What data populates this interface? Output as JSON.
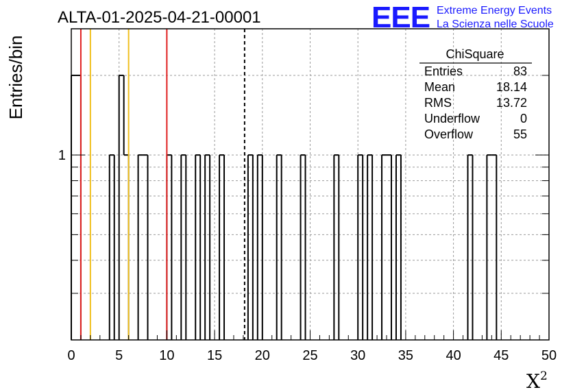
{
  "chart_data": {
    "type": "histogram",
    "title": "ALTA-01-2025-04-21-00001",
    "xlabel": "X",
    "xlabel_superscript": "2",
    "ylabel": "Entries/bin",
    "xlim": [
      0,
      50
    ],
    "ylim": [
      0.2,
      3
    ],
    "y_scale": "log",
    "bin_width": 0.5,
    "grid": true,
    "x_ticks": [
      0,
      5,
      10,
      15,
      20,
      25,
      30,
      35,
      40,
      45,
      50
    ],
    "y_tick_labels": [
      {
        "value": 1,
        "label": "1"
      }
    ],
    "bins": [
      {
        "x0": 0.0,
        "x1": 0.5,
        "count": 2
      },
      {
        "x0": 0.5,
        "x1": 1.0,
        "count": 2
      },
      {
        "x0": 4.0,
        "x1": 4.5,
        "count": 1
      },
      {
        "x0": 5.0,
        "x1": 5.5,
        "count": 2
      },
      {
        "x0": 5.5,
        "x1": 6.0,
        "count": 1
      },
      {
        "x0": 7.0,
        "x1": 7.5,
        "count": 1
      },
      {
        "x0": 7.5,
        "x1": 8.0,
        "count": 1
      },
      {
        "x0": 10.0,
        "x1": 10.5,
        "count": 1
      },
      {
        "x0": 11.5,
        "x1": 12.0,
        "count": 1
      },
      {
        "x0": 13.0,
        "x1": 13.5,
        "count": 1
      },
      {
        "x0": 14.0,
        "x1": 14.5,
        "count": 1
      },
      {
        "x0": 15.5,
        "x1": 16.0,
        "count": 1
      },
      {
        "x0": 18.5,
        "x1": 19.0,
        "count": 1
      },
      {
        "x0": 19.5,
        "x1": 20.0,
        "count": 1
      },
      {
        "x0": 21.5,
        "x1": 22.0,
        "count": 1
      },
      {
        "x0": 24.0,
        "x1": 24.5,
        "count": 1
      },
      {
        "x0": 27.5,
        "x1": 28.0,
        "count": 1
      },
      {
        "x0": 30.0,
        "x1": 30.5,
        "count": 1
      },
      {
        "x0": 31.0,
        "x1": 31.5,
        "count": 1
      },
      {
        "x0": 32.5,
        "x1": 33.0,
        "count": 1
      },
      {
        "x0": 33.0,
        "x1": 33.5,
        "count": 1
      },
      {
        "x0": 34.0,
        "x1": 34.5,
        "count": 1
      },
      {
        "x0": 41.5,
        "x1": 42.0,
        "count": 1
      },
      {
        "x0": 43.5,
        "x1": 44.0,
        "count": 1
      },
      {
        "x0": 44.0,
        "x1": 44.5,
        "count": 1
      }
    ],
    "reference_lines": [
      {
        "x": 1.0,
        "color": "#e02020"
      },
      {
        "x": 2.0,
        "color": "#f0c020"
      },
      {
        "x": 6.0,
        "color": "#f0c020"
      },
      {
        "x": 10.0,
        "color": "#e02020"
      },
      {
        "x": 18.14,
        "color": "#000000",
        "style": "dashed"
      }
    ],
    "stats_box": {
      "title": "ChiSquare",
      "rows": [
        {
          "label": "Entries",
          "value": "83"
        },
        {
          "label": "Mean",
          "value": "18.14"
        },
        {
          "label": "RMS",
          "value": "13.72"
        },
        {
          "label": "Underflow",
          "value": "0"
        },
        {
          "label": "Overflow",
          "value": "55"
        }
      ]
    }
  },
  "logo": {
    "mark": "EEE",
    "line1": "Extreme Energy Events",
    "line2": "La Scienza nelle Scuole"
  },
  "colors": {
    "logo": "#1a1aff",
    "histogram": "#000000",
    "grid": "#9a9a9a"
  }
}
